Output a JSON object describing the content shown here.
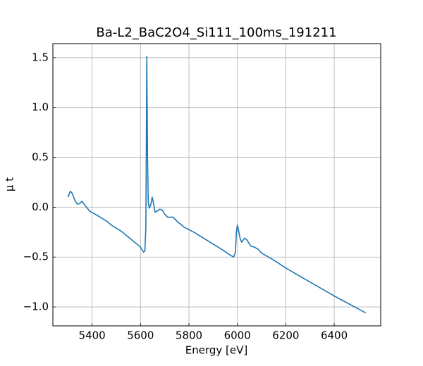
{
  "chart_data": {
    "type": "line",
    "title": "Ba-L2_BaC2O4_Si111_100ms_191211",
    "xlabel": "Energy [eV]",
    "ylabel": "μ t",
    "x": [
      5300,
      5310,
      5318,
      5330,
      5340,
      5350,
      5358,
      5370,
      5390,
      5420,
      5460,
      5480,
      5520,
      5560,
      5600,
      5612,
      5618,
      5622,
      5624,
      5626,
      5629,
      5632,
      5636,
      5642,
      5648,
      5652,
      5660,
      5668,
      5680,
      5690,
      5700,
      5712,
      5725,
      5735,
      5750,
      5780,
      5820,
      5860,
      5900,
      5940,
      5970,
      5985,
      5992,
      5996,
      6000,
      6004,
      6012,
      6018,
      6030,
      6040,
      6055,
      6070,
      6085,
      6100,
      6150,
      6200,
      6300,
      6400,
      6500,
      6530
    ],
    "series": [
      {
        "color": "#1f77b4",
        "values": [
          0.1,
          0.16,
          0.14,
          0.06,
          0.03,
          0.04,
          0.06,
          0.02,
          -0.04,
          -0.08,
          -0.14,
          -0.18,
          -0.24,
          -0.32,
          -0.4,
          -0.45,
          -0.44,
          -0.2,
          0.6,
          1.51,
          0.5,
          0.05,
          -0.01,
          0.02,
          0.1,
          0.06,
          -0.05,
          -0.04,
          -0.02,
          -0.03,
          -0.07,
          -0.1,
          -0.1,
          -0.1,
          -0.14,
          -0.2,
          -0.25,
          -0.31,
          -0.37,
          -0.43,
          -0.48,
          -0.5,
          -0.45,
          -0.25,
          -0.18,
          -0.22,
          -0.32,
          -0.35,
          -0.31,
          -0.33,
          -0.39,
          -0.4,
          -0.42,
          -0.46,
          -0.53,
          -0.61,
          -0.75,
          -0.89,
          -1.02,
          -1.06
        ]
      }
    ],
    "xlim": [
      5238,
      6592
    ],
    "ylim": [
      -1.19,
      1.64
    ],
    "xticks": [
      5400,
      5600,
      5800,
      6000,
      6200,
      6400
    ],
    "yticks": [
      {
        "value": -1,
        "label": "−1.0"
      },
      {
        "value": -0.5,
        "label": "−0.5"
      },
      {
        "value": 0,
        "label": "0.0"
      },
      {
        "value": 0.5,
        "label": "0.5"
      },
      {
        "value": 1,
        "label": "1.0"
      },
      {
        "value": 1.5,
        "label": "1.5"
      }
    ],
    "grid": true
  }
}
